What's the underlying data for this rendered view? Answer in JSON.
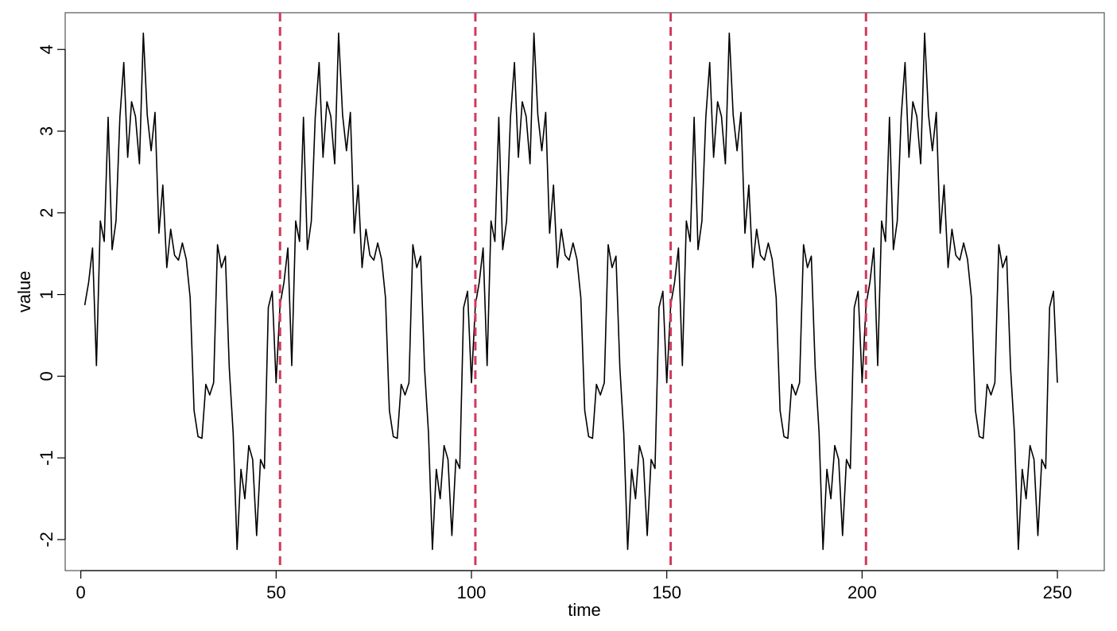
{
  "chart_data": {
    "type": "line",
    "title": "",
    "xlabel": "time",
    "ylabel": "value",
    "xlim": [
      -4,
      262
    ],
    "ylim": [
      -2.38,
      4.45
    ],
    "x_ticks": [
      0,
      50,
      100,
      150,
      200,
      250
    ],
    "x_tick_labels": [
      "0",
      "50",
      "100",
      "150",
      "200",
      "250"
    ],
    "y_ticks": [
      -2,
      -1,
      0,
      1,
      2,
      3,
      4
    ],
    "y_tick_labels": [
      "-2",
      "-1",
      "0",
      "1",
      "2",
      "3",
      "4"
    ],
    "grid": false,
    "line_color": "#000000",
    "vline_color": "#d03a5a",
    "vlines": [
      51,
      101,
      151,
      201
    ],
    "period": 50,
    "n_points": 250,
    "cycle_values": [
      0.87,
      1.15,
      1.57,
      0.13,
      1.9,
      1.65,
      3.17,
      1.55,
      1.9,
      3.17,
      3.84,
      2.68,
      3.36,
      3.18,
      2.6,
      4.2,
      3.2,
      2.76,
      3.23,
      1.75,
      2.34,
      1.33,
      1.8,
      1.48,
      1.42,
      1.63,
      1.43,
      0.96,
      -0.42,
      -0.74,
      -0.76,
      -0.1,
      -0.23,
      -0.08,
      1.61,
      1.33,
      1.47,
      0.1,
      -0.7,
      -2.12,
      -1.14,
      -1.5,
      -0.85,
      -1.02,
      -1.95,
      -1.02,
      -1.13,
      0.84,
      1.04,
      -0.08
    ]
  }
}
